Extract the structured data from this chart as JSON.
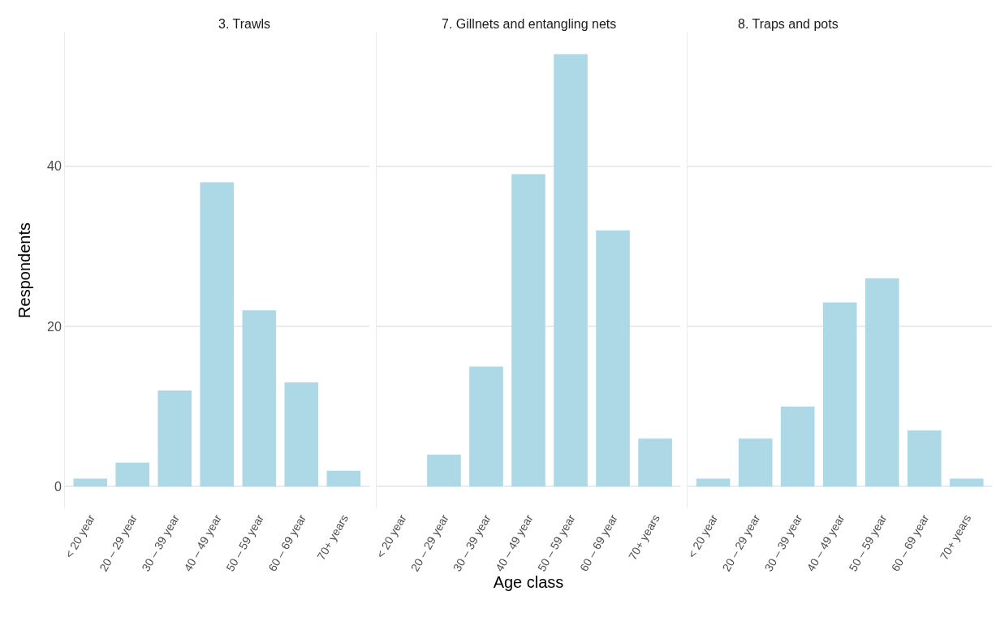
{
  "chart_data": [
    {
      "type": "bar",
      "title": "3. Trawls",
      "ylabel": "Respondents",
      "categories": [
        "< 20 year",
        "20 – 29 year",
        "30 – 39 year",
        "40 – 49 year",
        "50 – 59 year",
        "60 – 69 year",
        "70+ years"
      ],
      "values": [
        1,
        3,
        12,
        38,
        22,
        13,
        2
      ],
      "color": "#add8e6",
      "ylim": [
        -2.7,
        56.7
      ],
      "yticks": [
        0,
        20,
        40
      ],
      "grid": "y",
      "legend": false
    },
    {
      "type": "bar",
      "title": "7. Gillnets and entangling nets",
      "xlabel": "Age class",
      "categories": [
        "< 20 year",
        "20 – 29 year",
        "30 – 39 year",
        "40 – 49 year",
        "50 – 59 year",
        "60 – 69 year",
        "70+ years"
      ],
      "values": [
        0,
        4,
        15,
        39,
        54,
        32,
        6
      ],
      "color": "#add8e6",
      "ylim": [
        -2.7,
        56.7
      ],
      "yticks": [
        0,
        20,
        40
      ],
      "grid": "y",
      "legend": false,
      "tick_labels": "x"
    },
    {
      "type": "bar",
      "title": "8. Traps and pots",
      "categories": [
        "< 20 year",
        "20 – 29 year",
        "30 – 39 year",
        "40 – 49 year",
        "50 – 59 year",
        "60 – 69 year",
        "70+ years"
      ],
      "values": [
        1,
        6,
        10,
        23,
        26,
        7,
        1
      ],
      "color": "#add8e6",
      "ylim": [
        -2.7,
        56.7
      ],
      "yticks": [
        0,
        20,
        40
      ],
      "grid": "y",
      "legend": false,
      "tick_labels": "x"
    }
  ]
}
